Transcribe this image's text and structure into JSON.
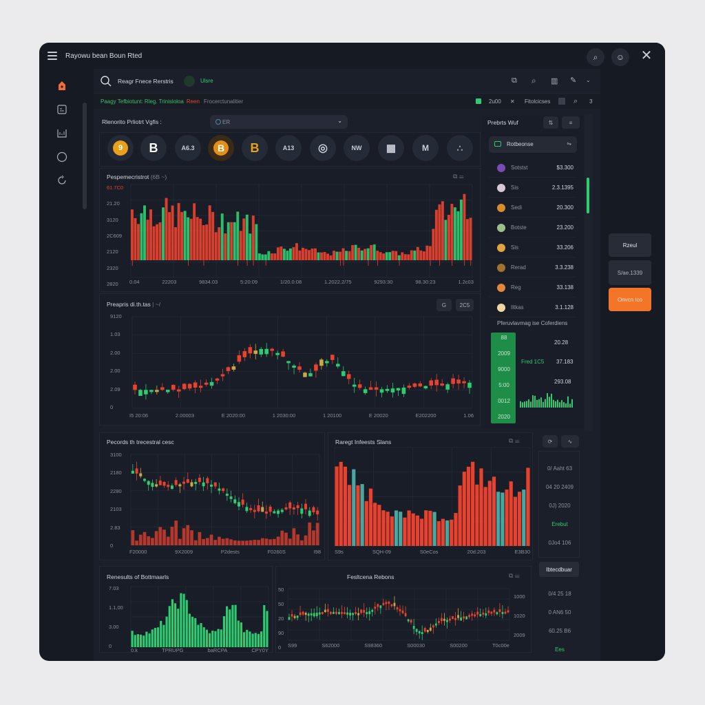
{
  "window": {
    "title": "Rayowu bean Boun Rted",
    "menu_icon": "hamburger-icon",
    "top_buttons": [
      "search-icon",
      "user-icon"
    ],
    "close_icon": "close-icon"
  },
  "sidebar": {
    "items": [
      {
        "icon": "lock-icon",
        "active": true
      },
      {
        "icon": "image-icon"
      },
      {
        "icon": "chart-icon"
      },
      {
        "icon": "circle-icon"
      },
      {
        "icon": "refresh-icon"
      }
    ]
  },
  "search": {
    "label": "Reagr Fnece Rerstris",
    "badge": "Ulsre",
    "toolbar_icons": [
      "window-icon",
      "search-icon",
      "columns-icon",
      "tools-icon",
      "chevron-down-icon"
    ]
  },
  "ticker": {
    "green_text": "Paagy Tefbiotunt: Rleg. Trinisloloa",
    "red_text": "Reen",
    "gray_text": "Frocerctunalitier",
    "right": {
      "count": "2u00",
      "label": "Fitolcicses",
      "page": "3"
    }
  },
  "watchlist": {
    "label": "Rlenorito Prliotrt Vgfis :",
    "dropdown_value": "ER",
    "coins": [
      {
        "glyph": "9",
        "color": "#e9a11c",
        "style": "filled"
      },
      {
        "glyph": "B",
        "color": "#ffffff",
        "style": "plain"
      },
      {
        "glyph": "A6.3",
        "color": "#c9ccd4",
        "style": "text"
      },
      {
        "glyph": "B",
        "color": "#e48e1a",
        "style": "filled-orange"
      },
      {
        "glyph": "B",
        "color": "#e9a11c",
        "style": "plain-gold"
      },
      {
        "glyph": "A13",
        "color": "#c9ccd4",
        "style": "text"
      },
      {
        "glyph": "◎",
        "color": "#ffffff",
        "style": "plain"
      },
      {
        "glyph": "NW",
        "color": "#ffffff",
        "style": "text"
      },
      {
        "glyph": "▦",
        "color": "#ffffff",
        "style": "plain"
      },
      {
        "glyph": "M",
        "color": "#ffffff",
        "style": "plain"
      },
      {
        "glyph": "∴",
        "color": "#9aa0ab",
        "style": "plain"
      }
    ]
  },
  "charts": {
    "c1": {
      "title": "Pespemecristrot",
      "suffix": "(6B ~)",
      "yticks": [
        "61.7C0",
        "21.20",
        "3120",
        "2C609",
        "2120",
        "2320",
        "2820"
      ],
      "xticks": [
        "0.04",
        "22203",
        "9834.03",
        "5:20:09",
        "1/20.0:08",
        "1.2022.2/75",
        "9293:30",
        "98.30:23",
        "1.2c03"
      ]
    },
    "c2": {
      "title": "Preapris di.th.tas",
      "suffix": "| ~/",
      "btn1": "G",
      "btn2": "2C5",
      "yticks": [
        "9120",
        "1.03",
        "2.00",
        "2.00",
        "2.09",
        "0"
      ],
      "xticks": [
        "I5 20:06",
        "2.00003",
        "E 2020:00",
        "1 2030:00",
        "1 20100",
        "E 20020",
        "E202200",
        "1.06"
      ]
    },
    "c3": {
      "title": "Pecords th trecestral cesc",
      "yticks": [
        "3100",
        "2180",
        "2280",
        "2103",
        "2.83",
        "0"
      ],
      "xticks": [
        "F20000",
        "9X2009",
        "P2dests",
        "F0260S",
        "I98"
      ]
    },
    "c4": {
      "title": "Raregt Infeests Slans",
      "xticks": [
        "S9s",
        "SQH-09",
        "S0eCos",
        "20d:203",
        "E3B30"
      ]
    },
    "c5": {
      "title": "Renesults of Bottmaarls",
      "yticks": [
        "7.03",
        "1.1,00",
        "3.00",
        "0"
      ],
      "xticks": [
        "0.k",
        "TPRUPG",
        "baRCPA",
        "CPY0Y"
      ]
    },
    "c6": {
      "title": "Fesltcena Rebons",
      "yticks": [
        "50",
        "50",
        "20",
        "90",
        "0"
      ],
      "yticks_right": [
        "1000",
        "1020",
        "2009"
      ],
      "xticks": [
        "S99",
        "S62000",
        "S98360",
        "S00030",
        "S00200",
        "T0c00e"
      ]
    }
  },
  "portfolio": {
    "title": "Prebrts Wuf",
    "search_label": "Rotbeonse",
    "rows": [
      {
        "name": "Sotstst",
        "value": "$3.300",
        "color": "#7b4bb5"
      },
      {
        "name": "Sis",
        "value": "2.3.1395",
        "color": "#d8c8d6"
      },
      {
        "name": "Sedi",
        "value": "20.300",
        "color": "#d78d2a"
      },
      {
        "name": "Botste",
        "value": "23.200",
        "color": "#9dbf8d"
      },
      {
        "name": "Sis",
        "value": "33.206",
        "color": "#e0a242"
      },
      {
        "name": "Rerad",
        "value": "3.3.238",
        "color": "#a0722d"
      },
      {
        "name": "Reg",
        "value": "33.138",
        "color": "#e5873a"
      },
      {
        "name": "Iltkas",
        "value": "3.1.128",
        "color": "#f1d7a2"
      }
    ]
  },
  "performance": {
    "title": "Pferuvlavmag ise Coferdiens",
    "bar_labels": [
      "88",
      "2009",
      "9000",
      "5:00",
      "0012",
      "2020"
    ],
    "values": [
      "20.28",
      "37.183",
      "293.08"
    ],
    "green_label": "Fred 1C5"
  },
  "actions": {
    "button1": "Rzeul",
    "display": "S/ae.1339",
    "primary": "Onvcn Ico"
  },
  "details": {
    "items": [
      "0/ Aaht 63",
      "04 20 2409",
      "0J) 2020",
      "Erebut",
      "0Jo4 106"
    ],
    "button": "Ibtecdbuar",
    "items2": [
      "0/4 25 18",
      "0 AN6 50",
      "60.25 B6",
      "Ees"
    ]
  },
  "colors": {
    "green": "#2ecc71",
    "red": "#e8422f",
    "accent": "#f57528",
    "bg": "#161a23"
  }
}
